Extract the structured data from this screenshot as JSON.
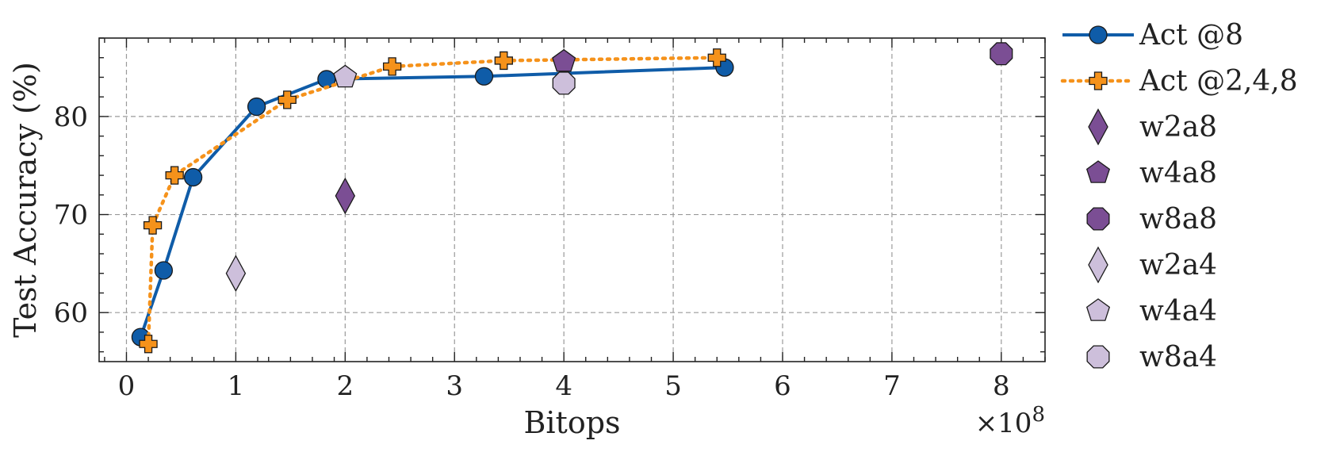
{
  "chart_data": {
    "type": "scatter",
    "xlabel": "Bitops",
    "ylabel": "Test Accuracy (%)",
    "x_multiplier_label": "×10",
    "x_multiplier_exponent": "8",
    "xlim": [
      -0.25,
      8.4
    ],
    "ylim": [
      55,
      88
    ],
    "x_ticks": [
      0,
      1,
      2,
      3,
      4,
      5,
      6,
      7,
      8
    ],
    "y_ticks": [
      60,
      70,
      80
    ],
    "grid": true,
    "legend_position": "outside-right",
    "series": [
      {
        "name": "Act @8",
        "kind": "line",
        "marker": "circle",
        "line_style": "solid",
        "color": "#0f5ca8",
        "x": [
          0.13,
          0.34,
          0.61,
          1.19,
          1.83,
          3.27,
          5.47
        ],
        "y": [
          57.5,
          64.3,
          73.8,
          81.0,
          83.8,
          84.1,
          85.0
        ]
      },
      {
        "name": "Act @2,4,8",
        "kind": "line",
        "marker": "plus",
        "line_style": "dotted",
        "color": "#f5921b",
        "x": [
          0.2,
          0.24,
          0.44,
          1.47,
          2.43,
          3.45,
          5.4
        ],
        "y": [
          56.8,
          68.9,
          74.0,
          81.7,
          85.1,
          85.7,
          86.0
        ]
      },
      {
        "name": "w2a8",
        "kind": "point",
        "marker": "diamond",
        "color": "#7b4e94",
        "x": [
          2
        ],
        "y": [
          71.9
        ]
      },
      {
        "name": "w4a8",
        "kind": "point",
        "marker": "pentagon",
        "color": "#7b4e94",
        "x": [
          4
        ],
        "y": [
          85.6
        ]
      },
      {
        "name": "w8a8",
        "kind": "point",
        "marker": "octagon",
        "color": "#7b4e94",
        "x": [
          8
        ],
        "y": [
          86.4
        ]
      },
      {
        "name": "w2a4",
        "kind": "point",
        "marker": "diamond",
        "color": "#cdbfdb",
        "x": [
          1
        ],
        "y": [
          64.0
        ]
      },
      {
        "name": "w4a4",
        "kind": "point",
        "marker": "pentagon",
        "color": "#cdbfdb",
        "x": [
          2
        ],
        "y": [
          84.0
        ]
      },
      {
        "name": "w8a4",
        "kind": "point",
        "marker": "octagon",
        "color": "#cdbfdb",
        "x": [
          4
        ],
        "y": [
          83.4
        ]
      }
    ]
  }
}
